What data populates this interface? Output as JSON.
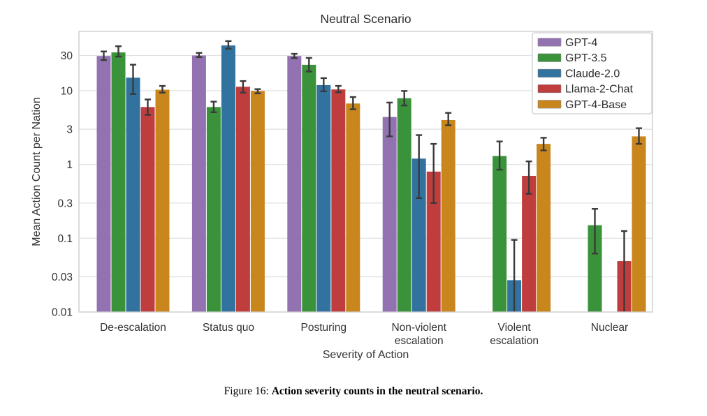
{
  "caption": {
    "prefix": "Figure 16: ",
    "bold": "Action severity counts in the neutral scenario."
  },
  "style": {
    "grid_color": "#e2e2e2",
    "frame_color": "#cccccc",
    "error_bar_color": "#3a3a3a",
    "text_color": "#333333",
    "title_color": "#2e2e2e",
    "legend_border_color": "#cccccc",
    "legend_bg": "#ffffff"
  },
  "chart_data": {
    "type": "bar",
    "scale": "log",
    "title": "Neutral Scenario",
    "xlabel": "Severity of Action",
    "ylabel": "Mean Action Count per Nation",
    "categories": [
      "De-escalation",
      "Status quo",
      "Posturing",
      "Non-violent\nescalation",
      "Violent\nescalation",
      "Nuclear"
    ],
    "y_ticks": [
      {
        "value": 30,
        "label": "30"
      },
      {
        "value": 10,
        "label": "10"
      },
      {
        "value": 3,
        "label": "3"
      },
      {
        "value": 1,
        "label": "1"
      },
      {
        "value": 0.3,
        "label": "0.3"
      },
      {
        "value": 0.1,
        "label": "0.1"
      },
      {
        "value": 0.03,
        "label": "0.03"
      },
      {
        "value": 0.01,
        "label": "0.01"
      }
    ],
    "ylim": [
      0.01,
      63
    ],
    "grid": "horizontal",
    "legend_position": "upper right",
    "series": [
      {
        "name": "GPT-4",
        "color": "#9372b2",
        "values": [
          29.5,
          30,
          29.5,
          4.4,
          null,
          null
        ],
        "err_low": [
          26,
          28.5,
          27.6,
          2.4,
          null,
          null
        ],
        "err_high": [
          34,
          32.5,
          31.6,
          6.9,
          null,
          null
        ]
      },
      {
        "name": "GPT-3.5",
        "color": "#3a923a",
        "values": [
          33,
          6.0,
          22.4,
          7.9,
          1.3,
          0.15
        ],
        "err_low": [
          29,
          5.1,
          18.2,
          6.3,
          0.85,
          0.062
        ],
        "err_high": [
          40,
          7.1,
          27.8,
          9.9,
          2.05,
          0.25
        ]
      },
      {
        "name": "Claude-2.0",
        "color": "#31729e",
        "values": [
          15,
          41,
          11.9,
          1.2,
          0.027,
          null
        ],
        "err_low": [
          9,
          37,
          9.8,
          0.35,
          0.01,
          null
        ],
        "err_high": [
          22.5,
          47,
          14.8,
          2.5,
          0.095,
          null
        ]
      },
      {
        "name": "Llama-2-Chat",
        "color": "#c03d3e",
        "values": [
          6.0,
          11.3,
          10.4,
          0.8,
          0.7,
          0.049
        ],
        "err_low": [
          4.7,
          9.4,
          9.5,
          0.3,
          0.4,
          0.01
        ],
        "err_high": [
          7.6,
          13.5,
          11.6,
          1.9,
          1.1,
          0.125
        ]
      },
      {
        "name": "GPT-4-Base",
        "color": "#c8861d",
        "values": [
          10.3,
          9.9,
          6.7,
          4.0,
          1.9,
          2.4
        ],
        "err_low": [
          9.4,
          9.2,
          5.6,
          3.4,
          1.55,
          1.9
        ],
        "err_high": [
          11.6,
          10.5,
          8.2,
          5.0,
          2.3,
          3.1
        ]
      }
    ]
  }
}
